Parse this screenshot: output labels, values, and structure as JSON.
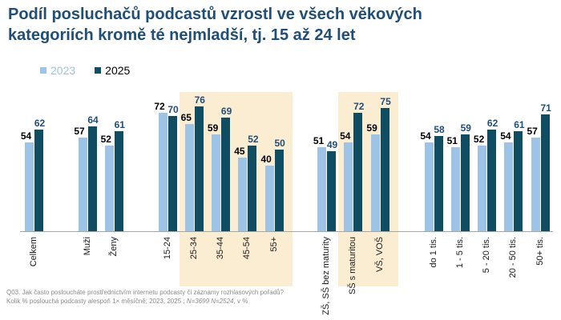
{
  "title": {
    "line1": "Podíl posluchačů podcastů vzrostl ve všech věkových",
    "line2": "kategoriích kromě té nejmladší, tj. 15 až 24 let"
  },
  "legend": {
    "items": [
      {
        "label": "2023",
        "swatch_color": "#9DC3E6",
        "text_color": "#9DC3E6"
      },
      {
        "label": "2025",
        "swatch_color": "#0F4D63",
        "text_color": "#000000"
      }
    ]
  },
  "chart_data": {
    "type": "bar",
    "title": "Podíl posluchačů podcastů vzrostl ve všech věkových kategoriích kromě té nejmladší, tj. 15 až 24 let",
    "series_names": [
      "2023",
      "2025"
    ],
    "value_unit": "%",
    "ylim": [
      0,
      100
    ],
    "grid": false,
    "legend_position": "top-left",
    "category_label_rotation": -90,
    "color_2023": "#9DC3E6",
    "color_2025": "#0F4D63",
    "label_color_2023": "#000000",
    "label_color_2025": "#1F4E79",
    "highlight_color": "#FAEDD2",
    "sections": [
      {
        "name": "total",
        "categories": [
          {
            "label": "Celkem",
            "v2023": 54,
            "v2025": 62
          }
        ]
      },
      {
        "name": "gender",
        "categories": [
          {
            "label": "Muži",
            "v2023": 57,
            "v2025": 64
          },
          {
            "label": "Ženy",
            "v2023": 52,
            "v2025": 61
          }
        ]
      },
      {
        "name": "age",
        "categories": [
          {
            "label": "15-24",
            "v2023": 72,
            "v2025": 70
          },
          {
            "label": "25-34",
            "v2023": 65,
            "v2025": 76
          },
          {
            "label": "35-44",
            "v2023": 59,
            "v2025": 69
          },
          {
            "label": "45-54",
            "v2023": 45,
            "v2025": 52
          },
          {
            "label": "55+",
            "v2023": 40,
            "v2025": 50
          }
        ]
      },
      {
        "name": "education",
        "categories": [
          {
            "label": "ZŠ, SŠ bez maturity",
            "v2023": 51,
            "v2025": 49
          },
          {
            "label": "SŠ  s maturitou",
            "v2023": 54,
            "v2025": 72
          },
          {
            "label": "VŠ, VOŠ",
            "v2023": 59,
            "v2025": 75
          }
        ]
      },
      {
        "name": "municipality-size",
        "categories": [
          {
            "label": "do 1 tis.",
            "v2023": 54,
            "v2025": 58
          },
          {
            "label": "1 - 5 tis.",
            "v2023": 51,
            "v2025": 59
          },
          {
            "label": "5 - 20 tis.",
            "v2023": 52,
            "v2025": 62
          },
          {
            "label": "20 - 50 tis.",
            "v2023": 54,
            "v2025": 61
          },
          {
            "label": "50+ tis.",
            "v2023": 57,
            "v2025": 71
          }
        ]
      }
    ],
    "highlights": [
      {
        "from_label": "25-34",
        "to_label": "55+"
      },
      {
        "from_label": "SŠ  s maturitou",
        "to_label": "VŠ, VOŠ"
      }
    ]
  },
  "footnote": {
    "line1": "Q03. Jak často posloucháte prostřednictvím internetu podcasty či záznamy rozhlasových pořadů?",
    "line2_prefix": "Kolik % poslouchá podcasty alespoň 1× měsíčně; 2023, 2025 ; ",
    "line2_italic": "N=3699 N=2524",
    "line2_suffix": ", v %"
  }
}
